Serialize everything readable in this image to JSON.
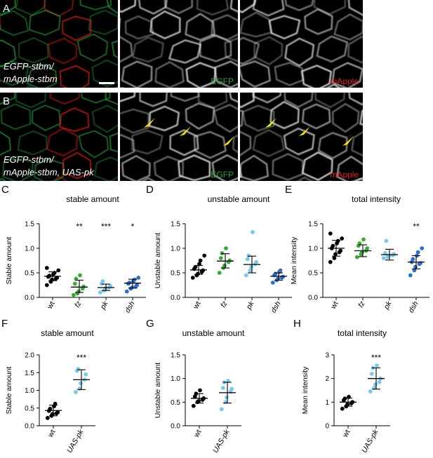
{
  "figure": {
    "micro_rows": [
      {
        "letter": "A",
        "label_lines": [
          "EGFP-stbm/",
          "mApple-stbm"
        ],
        "channels": [
          "EGFP",
          "mApple"
        ],
        "channel_colors": [
          "#2ea043",
          "#e0201c"
        ]
      },
      {
        "letter": "B",
        "label_lines": [
          "EGFP-stbm/",
          "mApple-stbm, UAS-pk"
        ],
        "channels": [
          "EGFP",
          "mApple"
        ],
        "channel_colors": [
          "#2ea043",
          "#e0201c"
        ],
        "arrowhead_color": "#f5e60a"
      }
    ]
  },
  "chart_data": [
    {
      "id": "C",
      "letter": "C",
      "type": "scatter",
      "title": "stable amount",
      "ylabel": "Stable amount",
      "ylim": [
        0,
        1.5
      ],
      "yticks": [
        "0.0",
        "0.5",
        "1.0",
        "1.5"
      ],
      "categories": [
        "wt",
        "fz",
        "pk",
        "dsh"
      ],
      "italic": [
        false,
        true,
        true,
        true
      ],
      "colors": [
        "#000000",
        "#3aaa35",
        "#7ac8ea",
        "#2f6fc7"
      ],
      "mean": [
        0.43,
        0.21,
        0.2,
        0.29
      ],
      "sd_low": [
        0.34,
        0.1,
        0.14,
        0.19
      ],
      "sd_high": [
        0.52,
        0.35,
        0.27,
        0.37
      ],
      "significance": [
        "",
        "**",
        "***",
        "*"
      ],
      "points": [
        [
          0.25,
          0.32,
          0.36,
          0.4,
          0.42,
          0.44,
          0.47,
          0.5,
          0.55,
          0.6,
          0.38
        ],
        [
          0.05,
          0.08,
          0.12,
          0.18,
          0.22,
          0.28,
          0.38,
          0.45
        ],
        [
          0.1,
          0.14,
          0.18,
          0.2,
          0.23,
          0.28,
          0.33
        ],
        [
          0.12,
          0.18,
          0.2,
          0.25,
          0.28,
          0.3,
          0.33,
          0.36,
          0.4,
          0.22
        ]
      ]
    },
    {
      "id": "D",
      "letter": "D",
      "type": "scatter",
      "title": "unstable amount",
      "ylabel": "Unstable amount",
      "ylim": [
        0,
        1.5
      ],
      "yticks": [
        "0.0",
        "0.5",
        "1.0",
        "1.5"
      ],
      "categories": [
        "wt",
        "fz",
        "pk",
        "dsh"
      ],
      "italic": [
        false,
        true,
        true,
        true
      ],
      "colors": [
        "#000000",
        "#3aaa35",
        "#7ac8ea",
        "#2f6fc7"
      ],
      "mean": [
        0.56,
        0.74,
        0.67,
        0.43
      ],
      "sd_low": [
        0.47,
        0.6,
        0.5,
        0.35
      ],
      "sd_high": [
        0.65,
        0.89,
        0.84,
        0.5
      ],
      "significance": [
        "",
        "",
        "",
        ""
      ],
      "points": [
        [
          0.4,
          0.45,
          0.48,
          0.52,
          0.55,
          0.58,
          0.62,
          0.68,
          0.75,
          0.85
        ],
        [
          0.5,
          0.6,
          0.65,
          0.72,
          0.75,
          0.8,
          0.9,
          1.0
        ],
        [
          0.45,
          0.55,
          0.62,
          0.68,
          0.72,
          0.78,
          0.85,
          1.33
        ],
        [
          0.3,
          0.35,
          0.38,
          0.42,
          0.45,
          0.48,
          0.52,
          0.55,
          0.4
        ]
      ]
    },
    {
      "id": "E",
      "letter": "E",
      "type": "scatter",
      "title": "total intensity",
      "ylabel": "Mean intensity",
      "ylim": [
        0,
        1.5
      ],
      "yticks": [
        "0.0",
        "0.5",
        "1.0",
        "1.5"
      ],
      "categories": [
        "wt",
        "fz",
        "pk",
        "dsh"
      ],
      "italic": [
        false,
        true,
        true,
        true
      ],
      "colors": [
        "#000000",
        "#3aaa35",
        "#7ac8ea",
        "#2f6fc7"
      ],
      "mean": [
        1.0,
        0.95,
        0.87,
        0.72
      ],
      "sd_low": [
        0.84,
        0.83,
        0.76,
        0.58
      ],
      "sd_high": [
        1.16,
        1.07,
        0.98,
        0.85
      ],
      "significance": [
        "",
        "",
        "",
        "**"
      ],
      "points": [
        [
          0.72,
          0.8,
          0.88,
          0.95,
          1.0,
          1.05,
          1.1,
          1.15,
          1.2,
          1.3,
          0.92
        ],
        [
          0.82,
          0.88,
          0.92,
          0.95,
          1.0,
          1.05,
          1.1,
          1.18
        ],
        [
          0.8,
          0.82,
          0.85,
          0.88,
          0.9,
          1.15,
          0.86
        ],
        [
          0.45,
          0.55,
          0.62,
          0.68,
          0.72,
          0.78,
          0.85,
          0.92,
          1.0,
          0.7
        ]
      ]
    },
    {
      "id": "F",
      "letter": "F",
      "type": "scatter",
      "title": "stable amount",
      "ylabel": "Stable amount",
      "ylim": [
        0,
        2.0
      ],
      "yticks": [
        "0.0",
        "0.5",
        "1.0",
        "1.5",
        "2.0"
      ],
      "categories": [
        "wt",
        "UAS-pk"
      ],
      "italic": [
        false,
        true
      ],
      "colors": [
        "#000000",
        "#7ac8ea"
      ],
      "mean": [
        0.43,
        1.3
      ],
      "sd_low": [
        0.28,
        1.02
      ],
      "sd_high": [
        0.58,
        1.58
      ],
      "significance": [
        "",
        "***"
      ],
      "points": [
        [
          0.22,
          0.28,
          0.33,
          0.38,
          0.42,
          0.48,
          0.55,
          0.62,
          0.35
        ],
        [
          0.95,
          1.05,
          1.2,
          1.3,
          1.45,
          1.55,
          1.6
        ]
      ]
    },
    {
      "id": "G",
      "letter": "G",
      "type": "scatter",
      "title": "unstable amount",
      "ylabel": "Unstable amount",
      "ylim": [
        0,
        1.5
      ],
      "yticks": [
        "0.0",
        "0.5",
        "1.0",
        "1.5"
      ],
      "categories": [
        "wt",
        "UAS-pk"
      ],
      "italic": [
        false,
        true
      ],
      "colors": [
        "#000000",
        "#7ac8ea"
      ],
      "mean": [
        0.58,
        0.7
      ],
      "sd_low": [
        0.48,
        0.48
      ],
      "sd_high": [
        0.68,
        0.92
      ],
      "significance": [
        "",
        ""
      ],
      "points": [
        [
          0.42,
          0.5,
          0.55,
          0.58,
          0.62,
          0.68,
          0.75,
          0.52
        ],
        [
          0.35,
          0.5,
          0.6,
          0.72,
          0.8,
          0.92,
          0.95,
          0.78
        ]
      ]
    },
    {
      "id": "H",
      "letter": "H",
      "type": "scatter",
      "title": "total intensity",
      "ylabel": "Mean intensity",
      "ylim": [
        0,
        3
      ],
      "yticks": [
        "0",
        "1",
        "2",
        "3"
      ],
      "categories": [
        "wt",
        "UAS-pk"
      ],
      "italic": [
        false,
        true
      ],
      "colors": [
        "#000000",
        "#7ac8ea"
      ],
      "mean": [
        1.0,
        2.0
      ],
      "sd_low": [
        0.83,
        1.55
      ],
      "sd_high": [
        1.17,
        2.45
      ],
      "significance": [
        "",
        "***"
      ],
      "points": [
        [
          0.72,
          0.82,
          0.9,
          0.95,
          1.0,
          1.08,
          1.15,
          1.22
        ],
        [
          1.45,
          1.6,
          1.85,
          2.0,
          2.2,
          2.45,
          2.55,
          1.75
        ]
      ]
    }
  ]
}
